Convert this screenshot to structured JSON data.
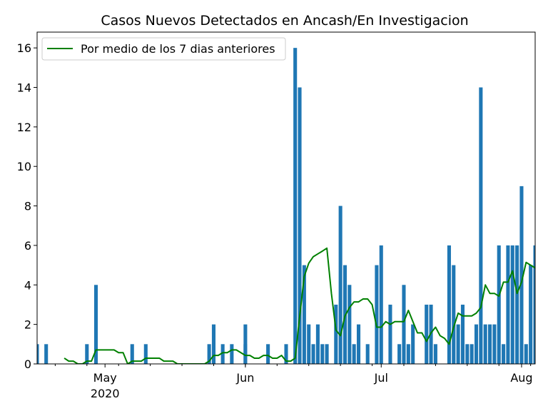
{
  "chart_data": {
    "type": "bar",
    "title": "Casos Nuevos Detectados en Ancash/En Investigacion",
    "xlabel": "",
    "ylabel": "",
    "x_axis": {
      "type": "date",
      "range": [
        "2020-04-16",
        "2020-08-04"
      ],
      "ticks": [
        {
          "date": "2020-05-01",
          "label": "May",
          "sublabel": "2020"
        },
        {
          "date": "2020-06-01",
          "label": "Jun",
          "sublabel": ""
        },
        {
          "date": "2020-07-01",
          "label": "Jul",
          "sublabel": ""
        },
        {
          "date": "2020-08-01",
          "label": "Aug",
          "sublabel": ""
        }
      ]
    },
    "ylim": [
      0,
      16.8
    ],
    "yticks": [
      "0",
      "2",
      "4",
      "6",
      "8",
      "10",
      "12",
      "14",
      "16"
    ],
    "grid": false,
    "legend": {
      "position": "top-left",
      "entries": [
        "Por medio de los 7 dias anteriores"
      ]
    },
    "colors": {
      "bars": "#1f77b4",
      "line": "#008000"
    },
    "series": [
      {
        "kind": "bar",
        "points": [
          [
            "2020-04-16",
            1
          ],
          [
            "2020-04-18",
            1
          ],
          [
            "2020-04-27",
            1
          ],
          [
            "2020-04-29",
            4
          ],
          [
            "2020-05-07",
            1
          ],
          [
            "2020-05-10",
            1
          ],
          [
            "2020-05-24",
            1
          ],
          [
            "2020-05-25",
            2
          ],
          [
            "2020-05-27",
            1
          ],
          [
            "2020-05-29",
            1
          ],
          [
            "2020-06-01",
            1
          ],
          [
            "2020-06-01",
            2
          ],
          [
            "2020-06-06",
            1
          ],
          [
            "2020-06-10",
            1
          ],
          [
            "2020-06-12",
            16
          ],
          [
            "2020-06-13",
            14
          ],
          [
            "2020-06-14",
            5
          ],
          [
            "2020-06-15",
            2
          ],
          [
            "2020-06-16",
            1
          ],
          [
            "2020-06-17",
            2
          ],
          [
            "2020-06-18",
            1
          ],
          [
            "2020-06-19",
            1
          ],
          [
            "2020-06-21",
            3
          ],
          [
            "2020-06-22",
            8
          ],
          [
            "2020-06-23",
            5
          ],
          [
            "2020-06-24",
            4
          ],
          [
            "2020-06-25",
            1
          ],
          [
            "2020-06-26",
            2
          ],
          [
            "2020-06-28",
            1
          ],
          [
            "2020-06-30",
            5
          ],
          [
            "2020-07-01",
            6
          ],
          [
            "2020-07-03",
            3
          ],
          [
            "2020-07-05",
            1
          ],
          [
            "2020-07-06",
            4
          ],
          [
            "2020-07-07",
            1
          ],
          [
            "2020-07-08",
            2
          ],
          [
            "2020-07-11",
            3
          ],
          [
            "2020-07-12",
            3
          ],
          [
            "2020-07-13",
            1
          ],
          [
            "2020-07-16",
            6
          ],
          [
            "2020-07-17",
            5
          ],
          [
            "2020-07-18",
            2
          ],
          [
            "2020-07-19",
            3
          ],
          [
            "2020-07-20",
            1
          ],
          [
            "2020-07-21",
            1
          ],
          [
            "2020-07-22",
            2
          ],
          [
            "2020-07-23",
            14
          ],
          [
            "2020-07-24",
            2
          ],
          [
            "2020-07-25",
            2
          ],
          [
            "2020-07-26",
            2
          ],
          [
            "2020-07-27",
            6
          ],
          [
            "2020-07-28",
            1
          ],
          [
            "2020-07-29",
            6
          ],
          [
            "2020-07-30",
            6
          ],
          [
            "2020-07-31",
            6
          ],
          [
            "2020-08-01",
            9
          ],
          [
            "2020-08-02",
            1
          ],
          [
            "2020-08-03",
            5
          ],
          [
            "2020-08-04",
            6
          ]
        ]
      },
      {
        "kind": "line",
        "name": "Por medio de los 7 dias anteriores",
        "points": [
          [
            "2020-04-22",
            0.29
          ],
          [
            "2020-04-23",
            0.14
          ],
          [
            "2020-04-24",
            0.14
          ],
          [
            "2020-04-25",
            0
          ],
          [
            "2020-04-26",
            0
          ],
          [
            "2020-04-27",
            0.14
          ],
          [
            "2020-04-28",
            0.14
          ],
          [
            "2020-04-29",
            0.71
          ],
          [
            "2020-04-30",
            0.71
          ],
          [
            "2020-05-01",
            0.71
          ],
          [
            "2020-05-02",
            0.71
          ],
          [
            "2020-05-03",
            0.71
          ],
          [
            "2020-05-04",
            0.57
          ],
          [
            "2020-05-05",
            0.57
          ],
          [
            "2020-05-06",
            0
          ],
          [
            "2020-05-07",
            0.14
          ],
          [
            "2020-05-08",
            0.14
          ],
          [
            "2020-05-09",
            0.14
          ],
          [
            "2020-05-10",
            0.29
          ],
          [
            "2020-05-11",
            0.29
          ],
          [
            "2020-05-12",
            0.29
          ],
          [
            "2020-05-13",
            0.29
          ],
          [
            "2020-05-14",
            0.14
          ],
          [
            "2020-05-15",
            0.14
          ],
          [
            "2020-05-16",
            0.14
          ],
          [
            "2020-05-17",
            0
          ],
          [
            "2020-05-18",
            0
          ],
          [
            "2020-05-19",
            0
          ],
          [
            "2020-05-20",
            0
          ],
          [
            "2020-05-21",
            0
          ],
          [
            "2020-05-22",
            0
          ],
          [
            "2020-05-23",
            0
          ],
          [
            "2020-05-24",
            0.14
          ],
          [
            "2020-05-25",
            0.43
          ],
          [
            "2020-05-26",
            0.43
          ],
          [
            "2020-05-27",
            0.57
          ],
          [
            "2020-05-28",
            0.57
          ],
          [
            "2020-05-29",
            0.71
          ],
          [
            "2020-05-30",
            0.71
          ],
          [
            "2020-05-31",
            0.57
          ],
          [
            "2020-06-01",
            0.43
          ],
          [
            "2020-06-02",
            0.43
          ],
          [
            "2020-06-03",
            0.29
          ],
          [
            "2020-06-04",
            0.29
          ],
          [
            "2020-06-05",
            0.43
          ],
          [
            "2020-06-06",
            0.43
          ],
          [
            "2020-06-07",
            0.29
          ],
          [
            "2020-06-08",
            0.29
          ],
          [
            "2020-06-09",
            0.43
          ],
          [
            "2020-06-10",
            0.14
          ],
          [
            "2020-06-11",
            0.14
          ],
          [
            "2020-06-12",
            0.29
          ],
          [
            "2020-06-13",
            2.43
          ],
          [
            "2020-06-14",
            4.43
          ],
          [
            "2020-06-15",
            5.1
          ],
          [
            "2020-06-16",
            5.43
          ],
          [
            "2020-06-17",
            5.57
          ],
          [
            "2020-06-18",
            5.71
          ],
          [
            "2020-06-19",
            5.86
          ],
          [
            "2020-06-20",
            3.57
          ],
          [
            "2020-06-21",
            1.71
          ],
          [
            "2020-06-22",
            1.43
          ],
          [
            "2020-06-23",
            2.43
          ],
          [
            "2020-06-24",
            2.86
          ],
          [
            "2020-06-25",
            3.14
          ],
          [
            "2020-06-26",
            3.14
          ],
          [
            "2020-06-27",
            3.29
          ],
          [
            "2020-06-28",
            3.29
          ],
          [
            "2020-06-29",
            3.0
          ],
          [
            "2020-06-30",
            1.86
          ],
          [
            "2020-07-01",
            1.86
          ],
          [
            "2020-07-02",
            2.14
          ],
          [
            "2020-07-03",
            2.0
          ],
          [
            "2020-07-04",
            2.14
          ],
          [
            "2020-07-05",
            2.14
          ],
          [
            "2020-07-06",
            2.14
          ],
          [
            "2020-07-07",
            2.71
          ],
          [
            "2020-07-08",
            2.14
          ],
          [
            "2020-07-09",
            1.57
          ],
          [
            "2020-07-10",
            1.57
          ],
          [
            "2020-07-11",
            1.14
          ],
          [
            "2020-07-12",
            1.57
          ],
          [
            "2020-07-13",
            1.86
          ],
          [
            "2020-07-14",
            1.43
          ],
          [
            "2020-07-15",
            1.29
          ],
          [
            "2020-07-16",
            1.0
          ],
          [
            "2020-07-17",
            1.86
          ],
          [
            "2020-07-18",
            2.57
          ],
          [
            "2020-07-19",
            2.43
          ],
          [
            "2020-07-20",
            2.43
          ],
          [
            "2020-07-21",
            2.43
          ],
          [
            "2020-07-22",
            2.57
          ],
          [
            "2020-07-23",
            2.86
          ],
          [
            "2020-07-24",
            4.0
          ],
          [
            "2020-07-25",
            3.57
          ],
          [
            "2020-07-26",
            3.57
          ],
          [
            "2020-07-27",
            3.43
          ],
          [
            "2020-07-28",
            4.14
          ],
          [
            "2020-07-29",
            4.14
          ],
          [
            "2020-07-30",
            4.71
          ],
          [
            "2020-07-31",
            3.57
          ],
          [
            "2020-08-01",
            4.14
          ],
          [
            "2020-08-02",
            5.14
          ],
          [
            "2020-08-03",
            5.0
          ],
          [
            "2020-08-04",
            4.86
          ],
          [
            "2020-08-05",
            5.57
          ]
        ]
      }
    ]
  }
}
